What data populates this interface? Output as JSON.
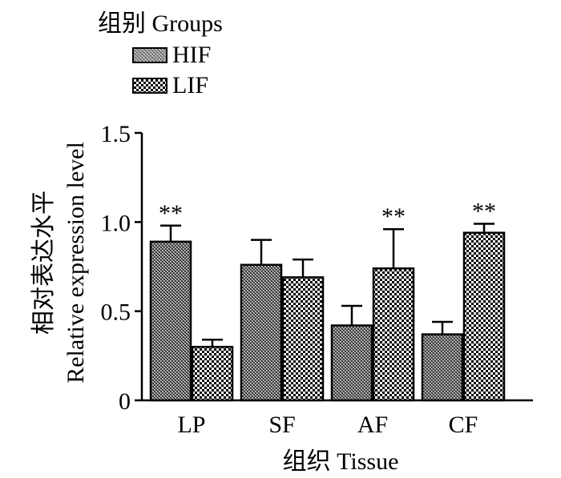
{
  "legend": {
    "title": "组别 Groups",
    "items": [
      {
        "label": "HIF",
        "pattern": "fine-dot"
      },
      {
        "label": "LIF",
        "pattern": "checker"
      }
    ]
  },
  "chart_data": {
    "type": "bar",
    "title": "",
    "xlabel": "组织  Tissue",
    "ylabel_cn": "相对表达水平",
    "ylabel_en": "Relative expression level",
    "ylim": [
      0,
      1.5
    ],
    "yticks": [
      {
        "value": 0,
        "label": "0"
      },
      {
        "value": 0.5,
        "label": "0.5"
      },
      {
        "value": 1.0,
        "label": "1.0"
      },
      {
        "value": 1.5,
        "label": "1.5"
      }
    ],
    "categories": [
      "LP",
      "SF",
      "AF",
      "CF"
    ],
    "series": [
      {
        "name": "HIF",
        "values": [
          0.89,
          0.76,
          0.42,
          0.37
        ],
        "errors": [
          0.09,
          0.14,
          0.11,
          0.07
        ]
      },
      {
        "name": "LIF",
        "values": [
          0.3,
          0.69,
          0.74,
          0.94
        ],
        "errors": [
          0.04,
          0.1,
          0.22,
          0.05
        ]
      }
    ],
    "annotations": [
      {
        "category": "LP",
        "series": "HIF",
        "text": "**"
      },
      {
        "category": "AF",
        "series": "LIF",
        "text": "**"
      },
      {
        "category": "CF",
        "series": "LIF",
        "text": "**"
      }
    ],
    "grid": false,
    "legend_position": "top-left"
  }
}
